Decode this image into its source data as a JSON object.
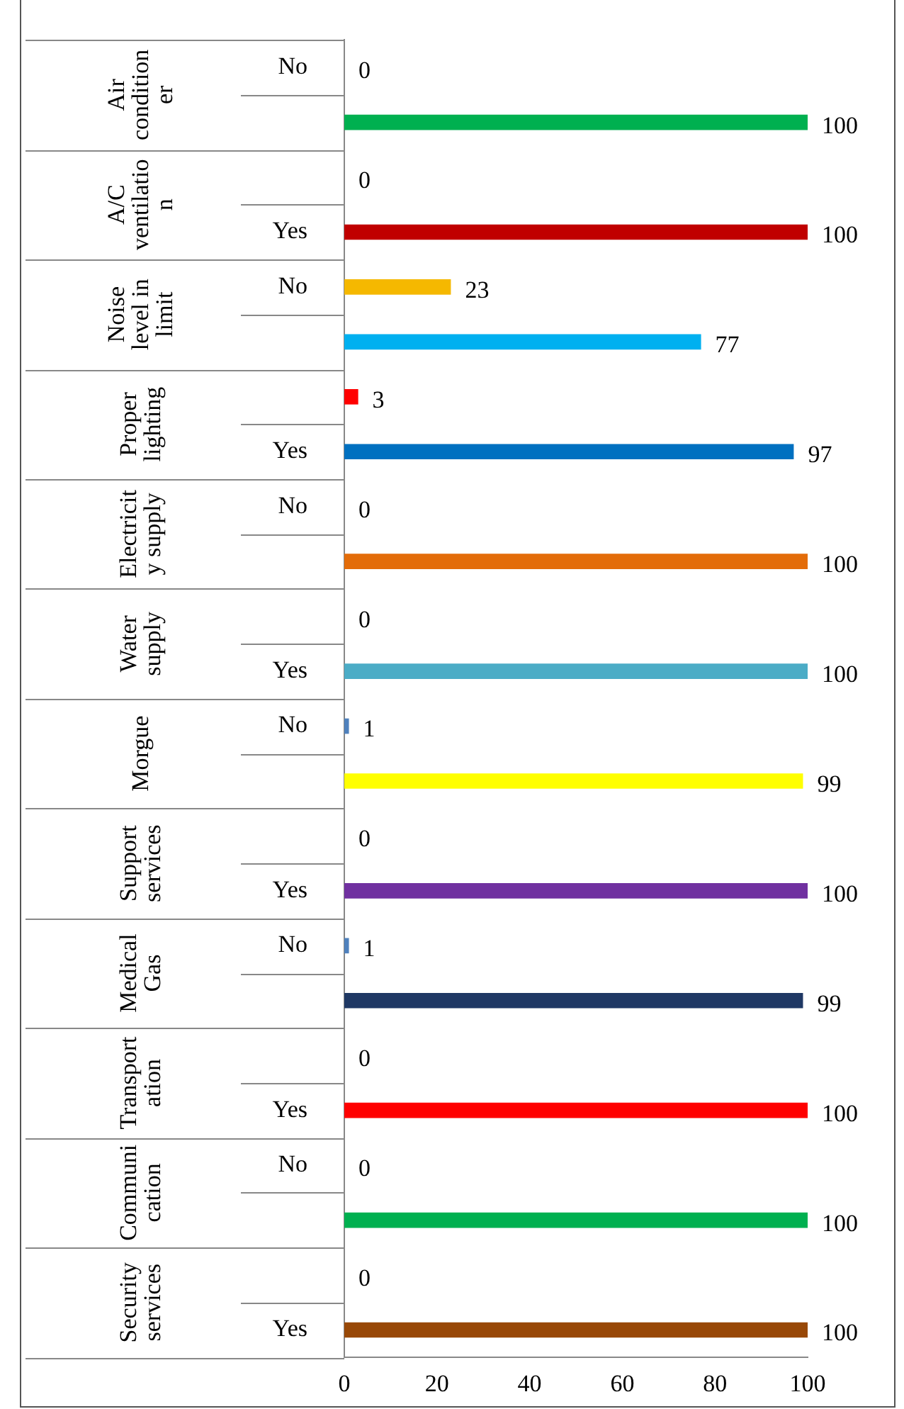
{
  "chart_data": {
    "type": "bar",
    "orientation": "horizontal",
    "categories": [
      "No",
      null,
      null,
      "Yes",
      "No",
      null,
      null,
      "Yes",
      "No",
      null,
      null,
      "Yes",
      "No",
      null,
      null,
      "Yes",
      "No",
      null,
      null,
      "Yes",
      "No",
      null,
      null,
      "Yes"
    ],
    "values": [
      0,
      100,
      0,
      100,
      23,
      77,
      3,
      97,
      0,
      100,
      0,
      100,
      1,
      99,
      0,
      100,
      1,
      99,
      0,
      100,
      0,
      100,
      0,
      100
    ],
    "colors": [
      "#4f81bd",
      "#00b050",
      "#4f81bd",
      "#c00000",
      "#f5b800",
      "#00b0f0",
      "#ff0000",
      "#0070c0",
      "#4f81bd",
      "#e36c09",
      "#4f81bd",
      "#4bacc6",
      "#4f81bd",
      "#ffff00",
      "#4f81bd",
      "#7030a0",
      "#4f81bd",
      "#1f3864",
      "#4f81bd",
      "#ff0000",
      "#4f81bd",
      "#00b050",
      "#4f81bd",
      "#984807"
    ],
    "xlim": [
      0,
      100
    ],
    "xticks": [
      0,
      20,
      40,
      60,
      80,
      100
    ],
    "annotations": [
      "Air conditioner",
      "A/C ventilation",
      "Noise level in limit",
      "Proper lighting",
      "Electricity supply",
      "Water supply",
      "Morgue",
      "Support services",
      "Medical Gas",
      "Transportation",
      "Communication",
      "Security services"
    ],
    "data_labels": true,
    "grid": false,
    "legend": false
  }
}
